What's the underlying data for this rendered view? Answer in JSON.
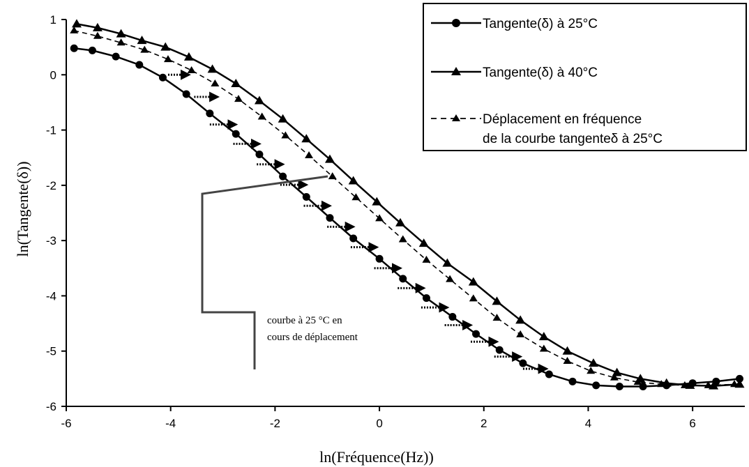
{
  "chart_data": {
    "type": "line",
    "title": "",
    "xlabel": "ln(Fréquence(Hz))",
    "ylabel": "ln(Tangente(δ))",
    "xlim": [
      -6,
      7
    ],
    "ylim": [
      -6,
      1
    ],
    "x_ticks": [
      -6,
      -4,
      -2,
      0,
      2,
      4,
      6
    ],
    "y_ticks": [
      -6,
      -5,
      -4,
      -3,
      -2,
      -1,
      0,
      1
    ],
    "x_tick_labels": [
      "-6",
      "-4",
      "-2",
      "0",
      "2",
      "4",
      "6"
    ],
    "y_tick_labels": [
      "-6",
      "-5",
      "-4",
      "-3",
      "-2",
      "-1",
      "0",
      "1"
    ],
    "grid": false,
    "legend_position": "top-right",
    "series": [
      {
        "name": "Tangente(δ) à 25°C",
        "marker": "circle",
        "line": "solid",
        "color": "#000000",
        "points": [
          [
            -5.85,
            0.48
          ],
          [
            -5.5,
            0.44
          ],
          [
            -5.05,
            0.33
          ],
          [
            -4.6,
            0.18
          ],
          [
            -4.15,
            -0.05
          ],
          [
            -3.7,
            -0.35
          ],
          [
            -3.25,
            -0.7
          ],
          [
            -2.75,
            -1.07
          ],
          [
            -2.3,
            -1.44
          ],
          [
            -1.85,
            -1.84
          ],
          [
            -1.4,
            -2.21
          ],
          [
            -0.95,
            -2.59
          ],
          [
            -0.5,
            -2.96
          ],
          [
            0.0,
            -3.33
          ],
          [
            0.45,
            -3.69
          ],
          [
            0.9,
            -4.04
          ],
          [
            1.4,
            -4.38
          ],
          [
            1.85,
            -4.69
          ],
          [
            2.3,
            -4.98
          ],
          [
            2.75,
            -5.22
          ],
          [
            3.25,
            -5.42
          ],
          [
            3.7,
            -5.55
          ],
          [
            4.15,
            -5.62
          ],
          [
            4.6,
            -5.64
          ],
          [
            5.05,
            -5.64
          ],
          [
            5.5,
            -5.62
          ],
          [
            6.0,
            -5.58
          ],
          [
            6.45,
            -5.55
          ],
          [
            6.9,
            -5.5
          ]
        ]
      },
      {
        "name": "Tangente(δ) à 40°C",
        "marker": "triangle",
        "line": "solid",
        "color": "#000000",
        "points": [
          [
            -5.8,
            0.92
          ],
          [
            -5.4,
            0.85
          ],
          [
            -4.95,
            0.74
          ],
          [
            -4.55,
            0.62
          ],
          [
            -4.1,
            0.5
          ],
          [
            -3.65,
            0.32
          ],
          [
            -3.2,
            0.1
          ],
          [
            -2.75,
            -0.16
          ],
          [
            -2.3,
            -0.47
          ],
          [
            -1.85,
            -0.8
          ],
          [
            -1.4,
            -1.16
          ],
          [
            -0.95,
            -1.53
          ],
          [
            -0.5,
            -1.92
          ],
          [
            -0.05,
            -2.3
          ],
          [
            0.4,
            -2.68
          ],
          [
            0.85,
            -3.05
          ],
          [
            1.3,
            -3.41
          ],
          [
            1.8,
            -3.75
          ],
          [
            2.25,
            -4.1
          ],
          [
            2.7,
            -4.44
          ],
          [
            3.15,
            -4.74
          ],
          [
            3.6,
            -5.0
          ],
          [
            4.1,
            -5.22
          ],
          [
            4.55,
            -5.39
          ],
          [
            5.0,
            -5.5
          ],
          [
            5.5,
            -5.58
          ],
          [
            5.95,
            -5.62
          ],
          [
            6.4,
            -5.63
          ],
          [
            6.9,
            -5.6
          ]
        ]
      },
      {
        "name": "Déplacement en fréquence de la courbe tangenteδ à 25°C",
        "legend_lines": [
          "Déplacement en fréquence",
          "de la courbe tangenteδ à 25°C"
        ],
        "marker": "triangle-small",
        "line": "dashed",
        "color": "#000000",
        "points": [
          [
            -5.85,
            0.8
          ],
          [
            -5.4,
            0.7
          ],
          [
            -4.95,
            0.58
          ],
          [
            -4.5,
            0.45
          ],
          [
            -4.05,
            0.28
          ],
          [
            -3.6,
            0.08
          ],
          [
            -3.15,
            -0.16
          ],
          [
            -2.7,
            -0.44
          ],
          [
            -2.25,
            -0.76
          ],
          [
            -1.8,
            -1.1
          ],
          [
            -1.35,
            -1.46
          ],
          [
            -0.9,
            -1.84
          ],
          [
            -0.45,
            -2.22
          ],
          [
            0.0,
            -2.6
          ],
          [
            0.45,
            -2.98
          ],
          [
            0.9,
            -3.35
          ],
          [
            1.35,
            -3.7
          ],
          [
            1.8,
            -4.05
          ],
          [
            2.25,
            -4.4
          ],
          [
            2.7,
            -4.7
          ],
          [
            3.15,
            -4.96
          ],
          [
            3.6,
            -5.18
          ],
          [
            4.05,
            -5.36
          ],
          [
            4.5,
            -5.48
          ],
          [
            4.95,
            -5.56
          ],
          [
            5.4,
            -5.6
          ],
          [
            5.85,
            -5.62
          ],
          [
            6.3,
            -5.62
          ],
          [
            6.8,
            -5.6
          ]
        ]
      }
    ],
    "shift_arrows": {
      "style": "dotted",
      "segments": [
        [
          -4.05,
          0.0,
          -3.65,
          0.0
        ],
        [
          -3.55,
          -0.4,
          -3.1,
          -0.4
        ],
        [
          -3.25,
          -0.9,
          -2.75,
          -0.9
        ],
        [
          -2.8,
          -1.25,
          -2.3,
          -1.25
        ],
        [
          -2.35,
          -1.62,
          -1.85,
          -1.62
        ],
        [
          -1.9,
          -1.99,
          -1.4,
          -1.99
        ],
        [
          -1.45,
          -2.37,
          -0.95,
          -2.37
        ],
        [
          -1.0,
          -2.75,
          -0.5,
          -2.75
        ],
        [
          -0.55,
          -3.12,
          -0.05,
          -3.12
        ],
        [
          -0.1,
          -3.5,
          0.4,
          -3.5
        ],
        [
          0.35,
          -3.86,
          0.85,
          -3.86
        ],
        [
          0.8,
          -4.21,
          1.3,
          -4.21
        ],
        [
          1.25,
          -4.53,
          1.75,
          -4.53
        ],
        [
          1.75,
          -4.83,
          2.25,
          -4.83
        ],
        [
          2.2,
          -5.1,
          2.7,
          -5.1
        ],
        [
          2.75,
          -5.32,
          3.2,
          -5.32
        ]
      ]
    },
    "annotation": {
      "lines": [
        "courbe à 25 °C en",
        "cours de déplacement"
      ]
    }
  }
}
